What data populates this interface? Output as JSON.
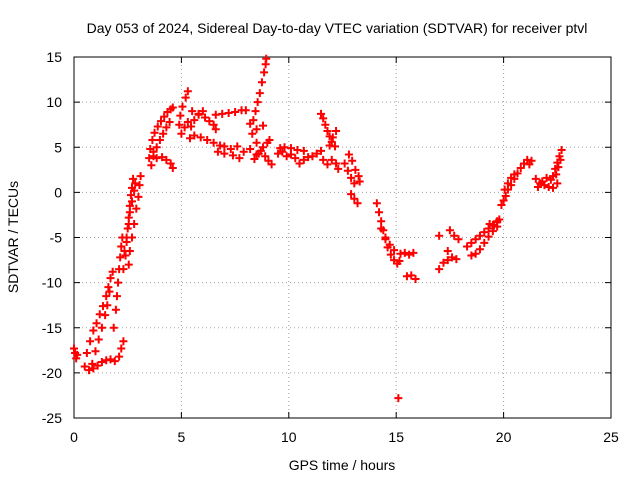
{
  "chart_data": {
    "type": "scatter",
    "title": "Day 053 of 2024, Sidereal Day-to-day VTEC variation (SDTVAR) for receiver ptvl",
    "xlabel": "GPS time / hours",
    "ylabel": "SDTVAR / TECUs",
    "xlim": [
      0,
      25
    ],
    "ylim": [
      -25,
      15
    ],
    "xticks": [
      0,
      5,
      10,
      15,
      20,
      25
    ],
    "yticks": [
      -25,
      -20,
      -15,
      -10,
      -5,
      0,
      5,
      10,
      15
    ],
    "grid": true,
    "marker": "+",
    "color": "#ff0000",
    "series": [
      {
        "name": "SDTVAR",
        "points": [
          [
            0.0,
            -17.3
          ],
          [
            0.05,
            -17.8
          ],
          [
            0.1,
            -18.4
          ],
          [
            0.15,
            -18.0
          ],
          [
            0.5,
            -19.3
          ],
          [
            0.7,
            -19.7
          ],
          [
            0.9,
            -19.5
          ],
          [
            1.1,
            -19.2
          ],
          [
            1.3,
            -18.8
          ],
          [
            1.5,
            -18.6
          ],
          [
            1.7,
            -18.5
          ],
          [
            1.9,
            -18.7
          ],
          [
            0.6,
            -17.8
          ],
          [
            0.75,
            -16.5
          ],
          [
            0.9,
            -15.3
          ],
          [
            1.05,
            -14.5
          ],
          [
            1.2,
            -13.5
          ],
          [
            1.35,
            -12.6
          ],
          [
            1.5,
            -11.5
          ],
          [
            1.6,
            -10.5
          ],
          [
            1.7,
            -9.5
          ],
          [
            1.8,
            -8.8
          ],
          [
            0.85,
            -19.0
          ],
          [
            1.0,
            -17.6
          ],
          [
            1.15,
            -16.3
          ],
          [
            1.3,
            -15.0
          ],
          [
            1.45,
            -13.6
          ],
          [
            1.55,
            -12.5
          ],
          [
            1.65,
            -11.0
          ],
          [
            1.85,
            -15.0
          ],
          [
            1.95,
            -13.0
          ],
          [
            2.0,
            -11.5
          ],
          [
            2.05,
            -10.0
          ],
          [
            2.1,
            -8.5
          ],
          [
            2.15,
            -7.2
          ],
          [
            2.2,
            -6.0
          ],
          [
            2.25,
            -5.0
          ],
          [
            2.1,
            -18.2
          ],
          [
            2.2,
            -17.3
          ],
          [
            2.3,
            -16.5
          ],
          [
            2.3,
            -8.5
          ],
          [
            2.4,
            -7.0
          ],
          [
            2.45,
            -5.5
          ],
          [
            2.5,
            -4.0
          ],
          [
            2.55,
            -2.8
          ],
          [
            2.6,
            -1.5
          ],
          [
            2.65,
            -0.3
          ],
          [
            2.7,
            0.5
          ],
          [
            2.75,
            1.5
          ],
          [
            2.35,
            -6.5
          ],
          [
            2.45,
            -5.0
          ],
          [
            2.55,
            -3.5
          ],
          [
            2.6,
            -2.2
          ],
          [
            2.7,
            -1.0
          ],
          [
            2.8,
            0.2
          ],
          [
            2.85,
            1.0
          ],
          [
            2.55,
            -8.0
          ],
          [
            2.6,
            -6.5
          ],
          [
            2.7,
            -5.0
          ],
          [
            2.8,
            -3.5
          ],
          [
            2.9,
            -1.8
          ],
          [
            3.0,
            -0.5
          ],
          [
            3.05,
            0.8
          ],
          [
            3.1,
            1.8
          ],
          [
            3.5,
            3.8
          ],
          [
            3.55,
            4.8
          ],
          [
            3.65,
            5.8
          ],
          [
            3.75,
            6.6
          ],
          [
            3.9,
            7.3
          ],
          [
            4.05,
            7.9
          ],
          [
            4.2,
            8.4
          ],
          [
            4.35,
            8.9
          ],
          [
            4.5,
            9.2
          ],
          [
            4.6,
            9.4
          ],
          [
            3.6,
            3.0
          ],
          [
            3.7,
            4.0
          ],
          [
            3.85,
            5.0
          ],
          [
            4.0,
            5.8
          ],
          [
            4.15,
            6.5
          ],
          [
            4.3,
            7.2
          ],
          [
            4.45,
            7.8
          ],
          [
            3.7,
            4.5
          ],
          [
            3.85,
            3.8
          ],
          [
            4.1,
            3.9
          ],
          [
            4.3,
            3.6
          ],
          [
            4.5,
            3.2
          ],
          [
            4.6,
            2.7
          ],
          [
            4.9,
            7.5
          ],
          [
            4.95,
            8.5
          ],
          [
            5.05,
            9.5
          ],
          [
            5.2,
            10.5
          ],
          [
            5.3,
            11.2
          ],
          [
            5.0,
            6.5
          ],
          [
            5.15,
            7.2
          ],
          [
            5.3,
            7.8
          ],
          [
            5.45,
            7.3
          ],
          [
            5.4,
            6.0
          ],
          [
            5.6,
            6.3
          ],
          [
            5.9,
            6.1
          ],
          [
            6.2,
            5.8
          ],
          [
            6.5,
            5.5
          ],
          [
            6.8,
            5.2
          ],
          [
            7.0,
            5.1
          ],
          [
            5.5,
            9.0
          ],
          [
            5.8,
            8.7
          ],
          [
            6.1,
            8.3
          ],
          [
            6.3,
            7.9
          ],
          [
            6.5,
            7.5
          ],
          [
            6.6,
            7.0
          ],
          [
            5.6,
            8.0
          ],
          [
            5.8,
            8.6
          ],
          [
            6.0,
            9.0
          ],
          [
            6.6,
            8.6
          ],
          [
            6.9,
            8.7
          ],
          [
            7.2,
            8.8
          ],
          [
            7.5,
            8.9
          ],
          [
            7.8,
            9.1
          ],
          [
            8.0,
            9.1
          ],
          [
            6.7,
            4.5
          ],
          [
            7.0,
            4.3
          ],
          [
            7.3,
            4.8
          ],
          [
            7.6,
            5.1
          ],
          [
            7.9,
            4.5
          ],
          [
            8.2,
            4.8
          ],
          [
            8.5,
            4.2
          ],
          [
            7.4,
            4.1
          ],
          [
            7.7,
            3.8
          ],
          [
            8.35,
            8.0
          ],
          [
            8.45,
            9.0
          ],
          [
            8.55,
            10.0
          ],
          [
            8.65,
            11.0
          ],
          [
            8.75,
            12.2
          ],
          [
            8.85,
            13.3
          ],
          [
            8.92,
            14.2
          ],
          [
            8.95,
            14.8
          ],
          [
            8.3,
            6.5
          ],
          [
            8.5,
            5.5
          ],
          [
            8.7,
            4.6
          ],
          [
            8.9,
            4.0
          ],
          [
            9.05,
            3.5
          ],
          [
            9.2,
            3.1
          ],
          [
            8.4,
            3.7
          ],
          [
            8.6,
            4.3
          ],
          [
            8.8,
            5.0
          ],
          [
            9.0,
            5.5
          ],
          [
            9.1,
            5.8
          ],
          [
            8.2,
            7.6
          ],
          [
            8.5,
            7.0
          ],
          [
            8.8,
            7.4
          ],
          [
            9.5,
            4.3
          ],
          [
            9.7,
            4.5
          ],
          [
            9.9,
            4.0
          ],
          [
            10.1,
            4.2
          ],
          [
            10.3,
            3.8
          ],
          [
            10.5,
            3.2
          ],
          [
            10.7,
            3.6
          ],
          [
            10.9,
            3.9
          ],
          [
            9.6,
            4.9
          ],
          [
            9.8,
            5.0
          ],
          [
            10.1,
            4.9
          ],
          [
            10.4,
            4.7
          ],
          [
            10.7,
            4.6
          ],
          [
            11.1,
            4.0
          ],
          [
            11.3,
            4.3
          ],
          [
            11.5,
            4.6
          ],
          [
            11.6,
            3.6
          ],
          [
            11.8,
            3.1
          ],
          [
            12.0,
            3.6
          ],
          [
            12.2,
            3.2
          ],
          [
            12.3,
            2.6
          ],
          [
            11.5,
            8.7
          ],
          [
            11.6,
            8.2
          ],
          [
            11.7,
            7.5
          ],
          [
            11.8,
            6.8
          ],
          [
            11.9,
            6.2
          ],
          [
            12.0,
            5.6
          ],
          [
            12.15,
            5.1
          ],
          [
            11.9,
            5.2
          ],
          [
            12.05,
            6.1
          ],
          [
            12.2,
            6.8
          ],
          [
            12.6,
            3.2
          ],
          [
            12.75,
            2.4
          ],
          [
            12.9,
            1.6
          ],
          [
            13.05,
            1.0
          ],
          [
            12.9,
            -0.2
          ],
          [
            13.05,
            -0.7
          ],
          [
            13.2,
            -1.2
          ],
          [
            12.8,
            4.2
          ],
          [
            12.95,
            3.5
          ],
          [
            13.1,
            2.5
          ],
          [
            13.25,
            1.8
          ],
          [
            13.3,
            1.2
          ],
          [
            14.1,
            -1.2
          ],
          [
            14.2,
            -2.2
          ],
          [
            14.3,
            -3.2
          ],
          [
            14.4,
            -4.2
          ],
          [
            14.5,
            -5.2
          ],
          [
            14.6,
            -6.1
          ],
          [
            14.75,
            -6.9
          ],
          [
            14.9,
            -7.5
          ],
          [
            15.05,
            -7.9
          ],
          [
            15.15,
            -7.6
          ],
          [
            14.3,
            -4.0
          ],
          [
            14.5,
            -5.0
          ],
          [
            14.7,
            -5.8
          ],
          [
            14.9,
            -6.4
          ],
          [
            15.2,
            -6.8
          ],
          [
            15.4,
            -6.7
          ],
          [
            15.6,
            -6.9
          ],
          [
            15.8,
            -6.7
          ],
          [
            15.5,
            -9.3
          ],
          [
            15.7,
            -9.2
          ],
          [
            15.9,
            -9.6
          ],
          [
            15.1,
            -22.8
          ],
          [
            17.0,
            -8.5
          ],
          [
            17.2,
            -7.8
          ],
          [
            17.4,
            -7.5
          ],
          [
            17.0,
            -4.8
          ],
          [
            17.5,
            -4.2
          ],
          [
            17.7,
            -4.8
          ],
          [
            17.9,
            -5.2
          ],
          [
            17.4,
            -6.5
          ],
          [
            17.6,
            -7.2
          ],
          [
            17.8,
            -7.4
          ],
          [
            18.3,
            -6.0
          ],
          [
            18.5,
            -5.6
          ],
          [
            18.7,
            -5.2
          ],
          [
            18.9,
            -4.8
          ],
          [
            19.1,
            -4.4
          ],
          [
            19.3,
            -4.0
          ],
          [
            19.5,
            -3.6
          ],
          [
            19.7,
            -3.3
          ],
          [
            18.5,
            -7.0
          ],
          [
            18.7,
            -6.8
          ],
          [
            18.9,
            -6.3
          ],
          [
            19.1,
            -5.6
          ],
          [
            19.3,
            -4.9
          ],
          [
            19.5,
            -4.3
          ],
          [
            19.7,
            -3.8
          ],
          [
            19.35,
            -3.5
          ],
          [
            19.55,
            -3.7
          ],
          [
            19.7,
            -3.2
          ],
          [
            19.8,
            -3.0
          ],
          [
            19.9,
            -1.4
          ],
          [
            20.0,
            -0.9
          ],
          [
            20.1,
            -0.4
          ],
          [
            20.2,
            0.3
          ],
          [
            20.35,
            0.8
          ],
          [
            20.5,
            1.5
          ],
          [
            20.65,
            2.1
          ],
          [
            20.8,
            2.7
          ],
          [
            20.95,
            3.2
          ],
          [
            21.1,
            3.6
          ],
          [
            21.2,
            3.1
          ],
          [
            20.05,
            0.3
          ],
          [
            20.2,
            1.0
          ],
          [
            20.35,
            1.6
          ],
          [
            20.5,
            2.0
          ],
          [
            21.3,
            3.5
          ],
          [
            21.5,
            1.5
          ],
          [
            21.7,
            1.0
          ],
          [
            21.9,
            0.8
          ],
          [
            22.1,
            0.6
          ],
          [
            22.3,
            0.5
          ],
          [
            22.5,
            1.0
          ],
          [
            21.6,
            0.6
          ],
          [
            21.8,
            1.2
          ],
          [
            22.0,
            1.6
          ],
          [
            22.2,
            1.4
          ],
          [
            22.3,
            1.8
          ],
          [
            22.4,
            2.6
          ],
          [
            22.5,
            3.3
          ],
          [
            22.6,
            4.0
          ],
          [
            22.7,
            4.7
          ],
          [
            22.45,
            2.0
          ],
          [
            22.55,
            2.8
          ],
          [
            22.65,
            3.6
          ]
        ]
      }
    ]
  }
}
